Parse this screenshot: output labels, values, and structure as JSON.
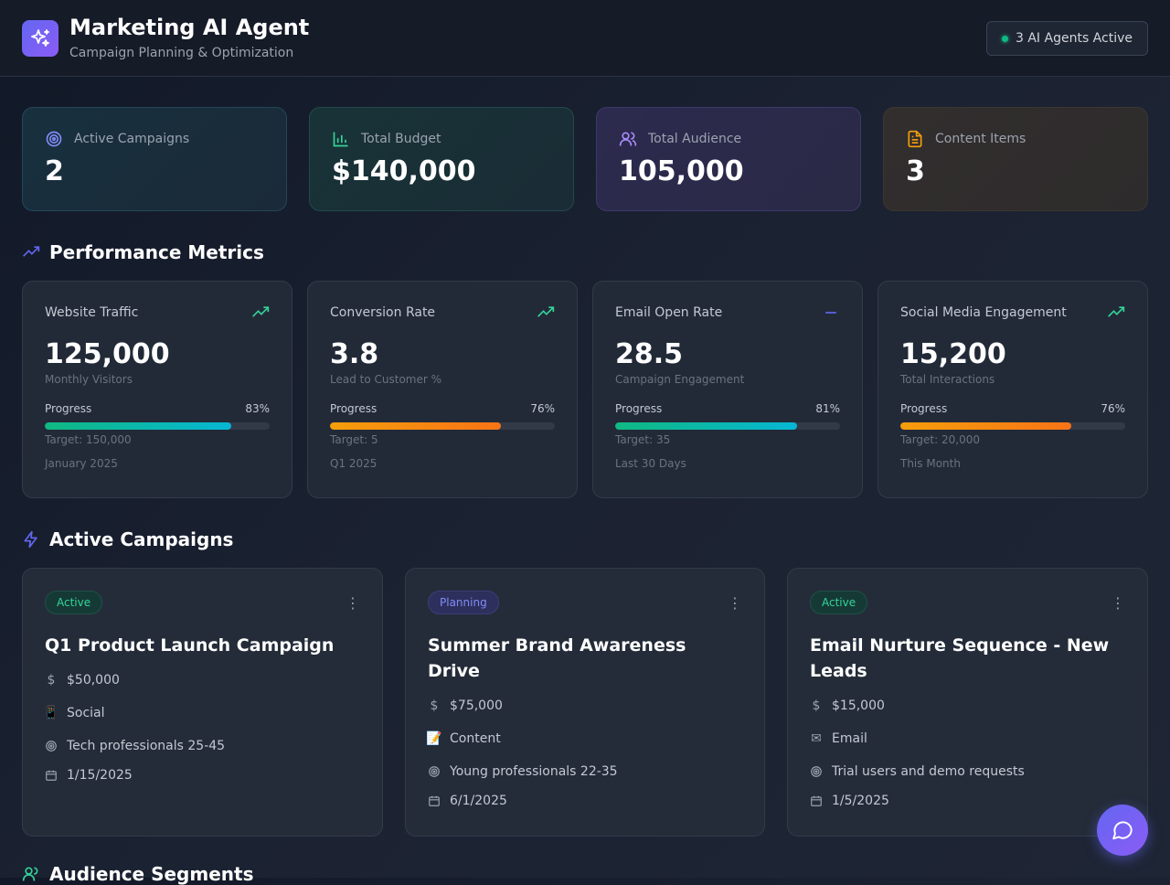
{
  "header": {
    "title": "Marketing AI Agent",
    "subtitle": "Campaign Planning & Optimization",
    "agents_status": "3 AI Agents Active"
  },
  "stats": [
    {
      "label": "Active Campaigns",
      "value": "2",
      "icon": "target-icon",
      "color": "#818cf8"
    },
    {
      "label": "Total Budget",
      "value": "$140,000",
      "icon": "bar-chart-icon",
      "color": "#34d399"
    },
    {
      "label": "Total Audience",
      "value": "105,000",
      "icon": "users-icon",
      "color": "#a78bfa"
    },
    {
      "label": "Content Items",
      "value": "3",
      "icon": "document-icon",
      "color": "#f59e0b"
    }
  ],
  "sections": {
    "performance": "Performance Metrics",
    "campaigns": "Active Campaigns",
    "audience": "Audience Segments"
  },
  "metrics": [
    {
      "name": "Website Traffic",
      "value": "125,000",
      "unit": "Monthly Visitors",
      "progress_label": "Progress",
      "progress_pct": "83%",
      "progress": 0.83,
      "target": "Target: 150,000",
      "period": "January 2025",
      "trend": "up",
      "bar": "teal"
    },
    {
      "name": "Conversion Rate",
      "value": "3.8",
      "unit": "Lead to Customer %",
      "progress_label": "Progress",
      "progress_pct": "76%",
      "progress": 0.76,
      "target": "Target: 5",
      "period": "Q1 2025",
      "trend": "up",
      "bar": "orange"
    },
    {
      "name": "Email Open Rate",
      "value": "28.5",
      "unit": "Campaign Engagement",
      "progress_label": "Progress",
      "progress_pct": "81%",
      "progress": 0.81,
      "target": "Target: 35",
      "period": "Last 30 Days",
      "trend": "flat",
      "bar": "teal"
    },
    {
      "name": "Social Media Engagement",
      "value": "15,200",
      "unit": "Total Interactions",
      "progress_label": "Progress",
      "progress_pct": "76%",
      "progress": 0.76,
      "target": "Target: 20,000",
      "period": "This Month",
      "trend": "up",
      "bar": "orange"
    }
  ],
  "campaigns": [
    {
      "status": "Active",
      "status_type": "active",
      "name": "Q1 Product Launch Campaign",
      "budget": "$50,000",
      "channel_icon": "📱",
      "channel": "Social",
      "audience": "Tech professionals 25-45",
      "date": "1/15/2025"
    },
    {
      "status": "Planning",
      "status_type": "planning",
      "name": "Summer Brand Awareness Drive",
      "budget": "$75,000",
      "channel_icon": "📝",
      "channel": "Content",
      "audience": "Young professionals 22-35",
      "date": "6/1/2025"
    },
    {
      "status": "Active",
      "status_type": "active",
      "name": "Email Nurture Sequence - New Leads",
      "budget": "$15,000",
      "channel_icon": "✉",
      "channel": "Email",
      "audience": "Trial users and demo requests",
      "date": "1/5/2025"
    }
  ]
}
